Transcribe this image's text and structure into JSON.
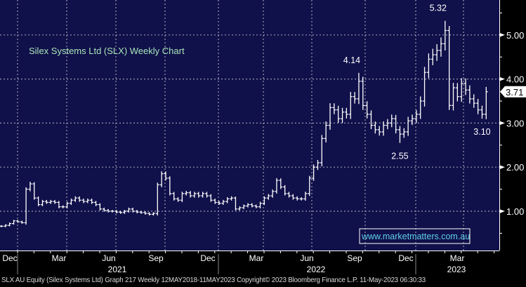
{
  "chart_data": {
    "type": "ohlc-bar",
    "title": "Silex Systems Ltd (SLX) Weekly Chart",
    "watermark": "www.marketmatters.com.au",
    "frequency": "weekly",
    "x_month_labels": [
      "Dec",
      "Mar",
      "Jun",
      "Sep",
      "Dec",
      "Mar",
      "Jun",
      "Sep",
      "Dec",
      "Mar"
    ],
    "x_year_labels": [
      "2021",
      "2022",
      "2023"
    ],
    "y_ticks": [
      1.0,
      2.0,
      3.0,
      4.0,
      5.0
    ],
    "y_tick_labels": [
      "1.00",
      "2.00",
      "3.00",
      "4.00",
      "5.00"
    ],
    "ylim": [
      0.1,
      5.8
    ],
    "grid": true,
    "close": [
      0.66,
      0.68,
      0.72,
      0.78,
      0.76,
      0.74,
      1.5,
      1.62,
      1.3,
      1.15,
      1.22,
      1.2,
      1.22,
      1.2,
      1.1,
      1.1,
      1.18,
      1.25,
      1.3,
      1.25,
      1.22,
      1.25,
      1.2,
      1.15,
      1.05,
      1.02,
      1.0,
      1.0,
      0.98,
      0.97,
      1.0,
      1.05,
      1.0,
      0.98,
      0.97,
      0.95,
      0.93,
      0.95,
      1.6,
      1.85,
      1.75,
      1.4,
      1.28,
      1.25,
      1.4,
      1.42,
      1.35,
      1.4,
      1.35,
      1.4,
      1.35,
      1.25,
      1.2,
      1.18,
      1.22,
      1.28,
      1.3,
      1.05,
      1.08,
      1.12,
      1.15,
      1.12,
      1.1,
      1.18,
      1.3,
      1.35,
      1.45,
      1.7,
      1.55,
      1.4,
      1.35,
      1.3,
      1.28,
      1.28,
      1.4,
      1.75,
      2.0,
      2.1,
      2.65,
      2.95,
      3.35,
      3.3,
      3.1,
      3.25,
      3.2,
      3.6,
      3.55,
      3.95,
      3.4,
      3.2,
      2.95,
      2.85,
      2.8,
      2.95,
      3.0,
      3.1,
      2.85,
      2.75,
      2.8,
      3.05,
      3.1,
      3.2,
      3.5,
      4.15,
      4.45,
      4.55,
      4.65,
      4.8,
      5.1,
      3.4,
      3.8,
      3.6,
      3.9,
      3.75,
      3.55,
      3.45,
      3.3,
      3.2,
      3.71
    ],
    "annotations": [
      {
        "label": "5.32",
        "week": 108,
        "value": 5.32,
        "type": "high"
      },
      {
        "label": "4.14",
        "week": 87,
        "value": 4.14,
        "type": "high"
      },
      {
        "label": "2.55",
        "week": 97,
        "value": 2.55,
        "type": "low"
      },
      {
        "label": "3.10",
        "week": 117,
        "value": 3.1,
        "type": "low"
      }
    ],
    "last_price": 3.71,
    "last_price_label": "3.71"
  },
  "footer": "SLX AU Equity (Silex Systems Ltd) Graph 217  Weekly 12MAY2018-11MAY2023  Copyright© 2023 Bloomberg Finance L.P.  11-May-2023 06:30:33",
  "colors": {
    "plot_bg": "#10104a",
    "bars": "#ffffff",
    "title": "#a8e6b8",
    "watermark": "#5fd0e8",
    "grid": "#9a9ab0"
  }
}
